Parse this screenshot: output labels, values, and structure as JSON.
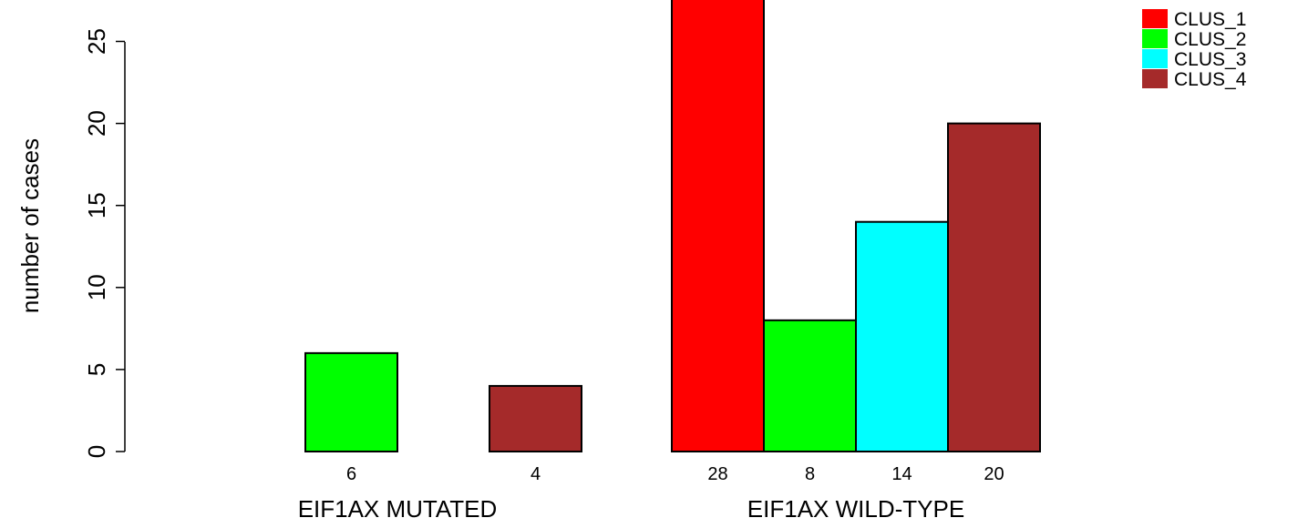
{
  "chart_data": {
    "type": "bar",
    "ylabel": "number of cases",
    "ylim": [
      0,
      28
    ],
    "y_ticks": [
      0,
      5,
      10,
      15,
      20,
      25
    ],
    "groups": [
      {
        "label": "EIF1AX MUTATED",
        "values": [
          0,
          6,
          0,
          4
        ],
        "value_labels": [
          "",
          "6",
          "",
          "4"
        ]
      },
      {
        "label": "EIF1AX WILD-TYPE",
        "values": [
          28,
          8,
          14,
          20
        ],
        "value_labels": [
          "28",
          "8",
          "14",
          "20"
        ]
      }
    ],
    "series": [
      {
        "name": "CLUS_1",
        "color": "#ff0000"
      },
      {
        "name": "CLUS_2",
        "color": "#00ff00"
      },
      {
        "name": "CLUS_3",
        "color": "#00ffff"
      },
      {
        "name": "CLUS_4",
        "color": "#a52a2a"
      }
    ],
    "legend_position": "top-right",
    "grid": false
  }
}
